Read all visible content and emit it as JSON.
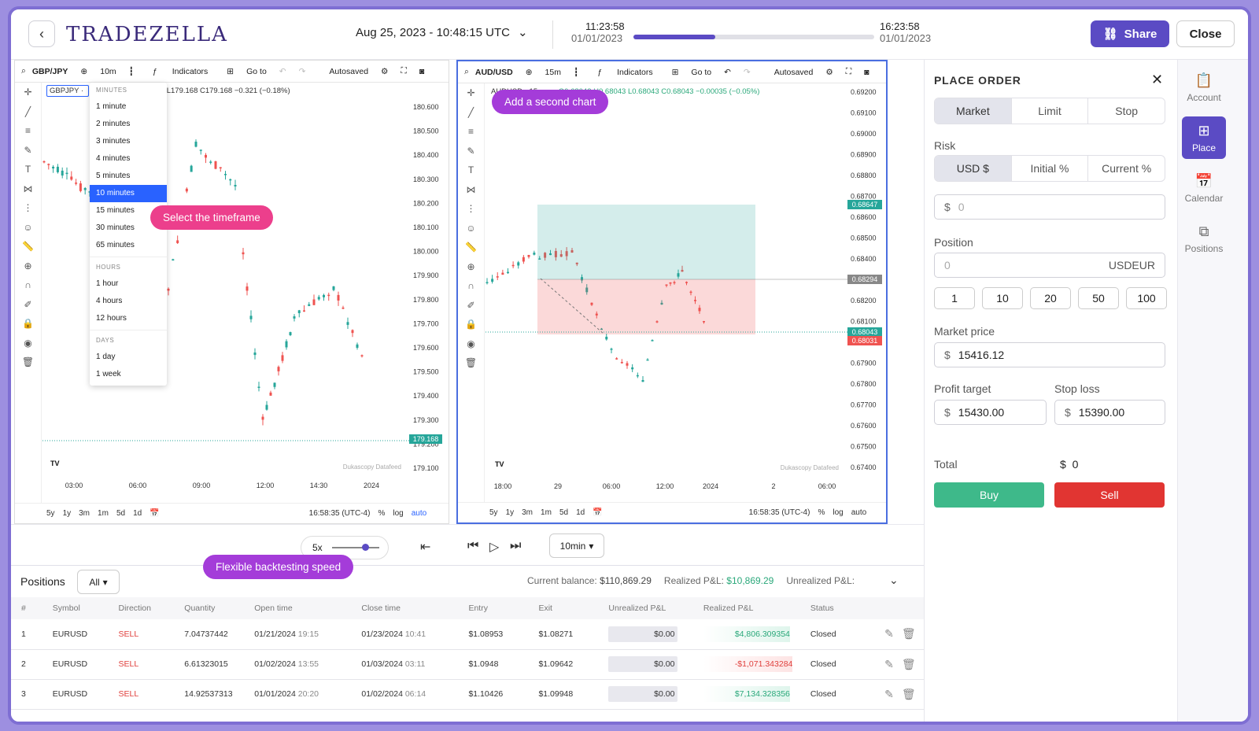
{
  "app": {
    "logo_text": "TRADEZELLA"
  },
  "topbar": {
    "date_selector": "Aug 25, 2023 - 10:48:15 UTC",
    "timeline_start_time": "11:23:58",
    "timeline_start_date": "01/01/2023",
    "timeline_end_time": "16:23:58",
    "timeline_end_date": "01/01/2023",
    "progress_fraction": 0.34,
    "share_label": "Share",
    "close_label": "Close"
  },
  "chart_left": {
    "symbol": "GBP/JPY",
    "interval": "10m",
    "indicators_label": "Indicators",
    "goto_label": "Go to",
    "autosaved_label": "Autosaved",
    "legend_symbol": "GBPJPY · ",
    "legend_values": "179.168 L179.168 C179.168 −0.321 (−0.18%)",
    "price_ticks": [
      "180.600",
      "180.500",
      "180.400",
      "180.300",
      "180.200",
      "180.100",
      "180.000",
      "179.900",
      "179.800",
      "179.700",
      "179.600",
      "179.500",
      "179.400",
      "179.300",
      "179.200",
      "179.100"
    ],
    "last_price": "179.168",
    "time_ticks": [
      "03:00",
      "06:00",
      "09:00",
      "12:00",
      "14:30",
      "2024"
    ],
    "datafeed": "Dukascopy Datafeed",
    "ranges": [
      "5y",
      "1y",
      "3m",
      "1m",
      "5d",
      "1d"
    ],
    "clock": "16:58:35 (UTC-4)",
    "pct": "%",
    "log": "log",
    "auto": "auto"
  },
  "timeframe_menu": {
    "minutes_header": "MINUTES",
    "minutes": [
      "1 minute",
      "2 minutes",
      "3 minutes",
      "4 minutes",
      "5 minutes",
      "10 minutes",
      "15 minutes",
      "30 minutes",
      "65 minutes"
    ],
    "selected": "10 minutes",
    "hours_header": "HOURS",
    "hours": [
      "1 hour",
      "4 hours",
      "12 hours"
    ],
    "days_header": "DAYS",
    "days": [
      "1 day",
      "1 week"
    ]
  },
  "chart_right": {
    "symbol": "AUD/USD",
    "interval": "15m",
    "indicators_label": "Indicators",
    "goto_label": "Go to",
    "autosaved_label": "Autosaved",
    "legend_symbol": "AUDUSD · 15",
    "legend_values": "O0.68043 H0.68043 L0.68043 C0.68043 −0.00035 (−0.05%)",
    "price_ticks": [
      "0.69200",
      "0.69100",
      "0.69000",
      "0.68900",
      "0.68800",
      "0.68700",
      "0.68600",
      "0.68500",
      "0.68400",
      "0.68300",
      "0.68200",
      "0.68100",
      "0.68000",
      "0.67900",
      "0.67800",
      "0.67700",
      "0.67600",
      "0.67500",
      "0.67400"
    ],
    "tag_target": "0.68647",
    "tag_entry": "0.68294",
    "tag_last": "0.68043",
    "tag_stop": "0.68031",
    "time_ticks": [
      "18:00",
      "29",
      "06:00",
      "12:00",
      "2024",
      "2",
      "06:00"
    ],
    "datafeed": "Dukascopy Datafeed",
    "ranges": [
      "5y",
      "1y",
      "3m",
      "1m",
      "5d",
      "1d"
    ],
    "clock": "16:58:35 (UTC-4)",
    "pct": "%",
    "log": "log",
    "auto": "auto"
  },
  "callouts": {
    "timeframe": "Select the timeframe",
    "second_chart": "Add a second chart",
    "speed": "Flexible backtesting speed"
  },
  "playbar": {
    "speed": "5x",
    "interval": "10min"
  },
  "positions": {
    "title": "Positions",
    "filter": "All",
    "current_balance_label": "Current balance:",
    "current_balance": "$110,869.29",
    "realized_label": "Realized P&L:",
    "realized": "$10,869.29",
    "unrealized_label": "Unrealized P&L:",
    "columns": [
      "#",
      "Symbol",
      "Direction",
      "Quantity",
      "Open time",
      "Close time",
      "Entry",
      "Exit",
      "Unrealized P&L",
      "Realized P&L",
      "Status"
    ],
    "rows": [
      {
        "n": "1",
        "symbol": "EURUSD",
        "dir": "SELL",
        "qty": "7.04737442",
        "open_d": "01/21/2024",
        "open_t": "19:15",
        "close_d": "01/23/2024",
        "close_t": "10:41",
        "entry": "$1.08953",
        "exit": "$1.08271",
        "unreal": "$0.00",
        "real": "$4,806.309354",
        "status": "Closed"
      },
      {
        "n": "2",
        "symbol": "EURUSD",
        "dir": "SELL",
        "qty": "6.61323015",
        "open_d": "01/02/2024",
        "open_t": "13:55",
        "close_d": "01/03/2024",
        "close_t": "03:11",
        "entry": "$1.0948",
        "exit": "$1.09642",
        "unreal": "$0.00",
        "real": "-$1,071.343284",
        "status": "Closed"
      },
      {
        "n": "3",
        "symbol": "EURUSD",
        "dir": "SELL",
        "qty": "14.92537313",
        "open_d": "01/01/2024",
        "open_t": "20:20",
        "close_d": "01/02/2024",
        "close_t": "06:14",
        "entry": "$1.10426",
        "exit": "$1.09948",
        "unreal": "$0.00",
        "real": "$7,134.328356",
        "status": "Closed"
      }
    ]
  },
  "order": {
    "title": "PLACE ORDER",
    "types": [
      "Market",
      "Limit",
      "Stop"
    ],
    "risk_label": "Risk",
    "risk_modes": [
      "USD $",
      "Initial %",
      "Current %"
    ],
    "risk_value": "0",
    "position_label": "Position",
    "position_value": "0",
    "position_unit": "USDEUR",
    "quick": [
      "1",
      "10",
      "20",
      "50",
      "100"
    ],
    "market_price_label": "Market price",
    "market_price": "15416.12",
    "profit_label": "Profit target",
    "profit_value": "15430.00",
    "stop_label": "Stop loss",
    "stop_value": "15390.00",
    "total_label": "Total",
    "total_currency": "$",
    "total_value": "0",
    "buy_label": "Buy",
    "sell_label": "Sell",
    "currency": "$"
  },
  "rail": {
    "items": [
      "Account",
      "Place",
      "Calendar",
      "Positions"
    ],
    "active": "Place"
  },
  "colors": {
    "accent": "#5b4bc4",
    "buy": "#3eb98a",
    "sell": "#e13532",
    "candle_up": "#26a69a",
    "candle_down": "#ef5350"
  }
}
